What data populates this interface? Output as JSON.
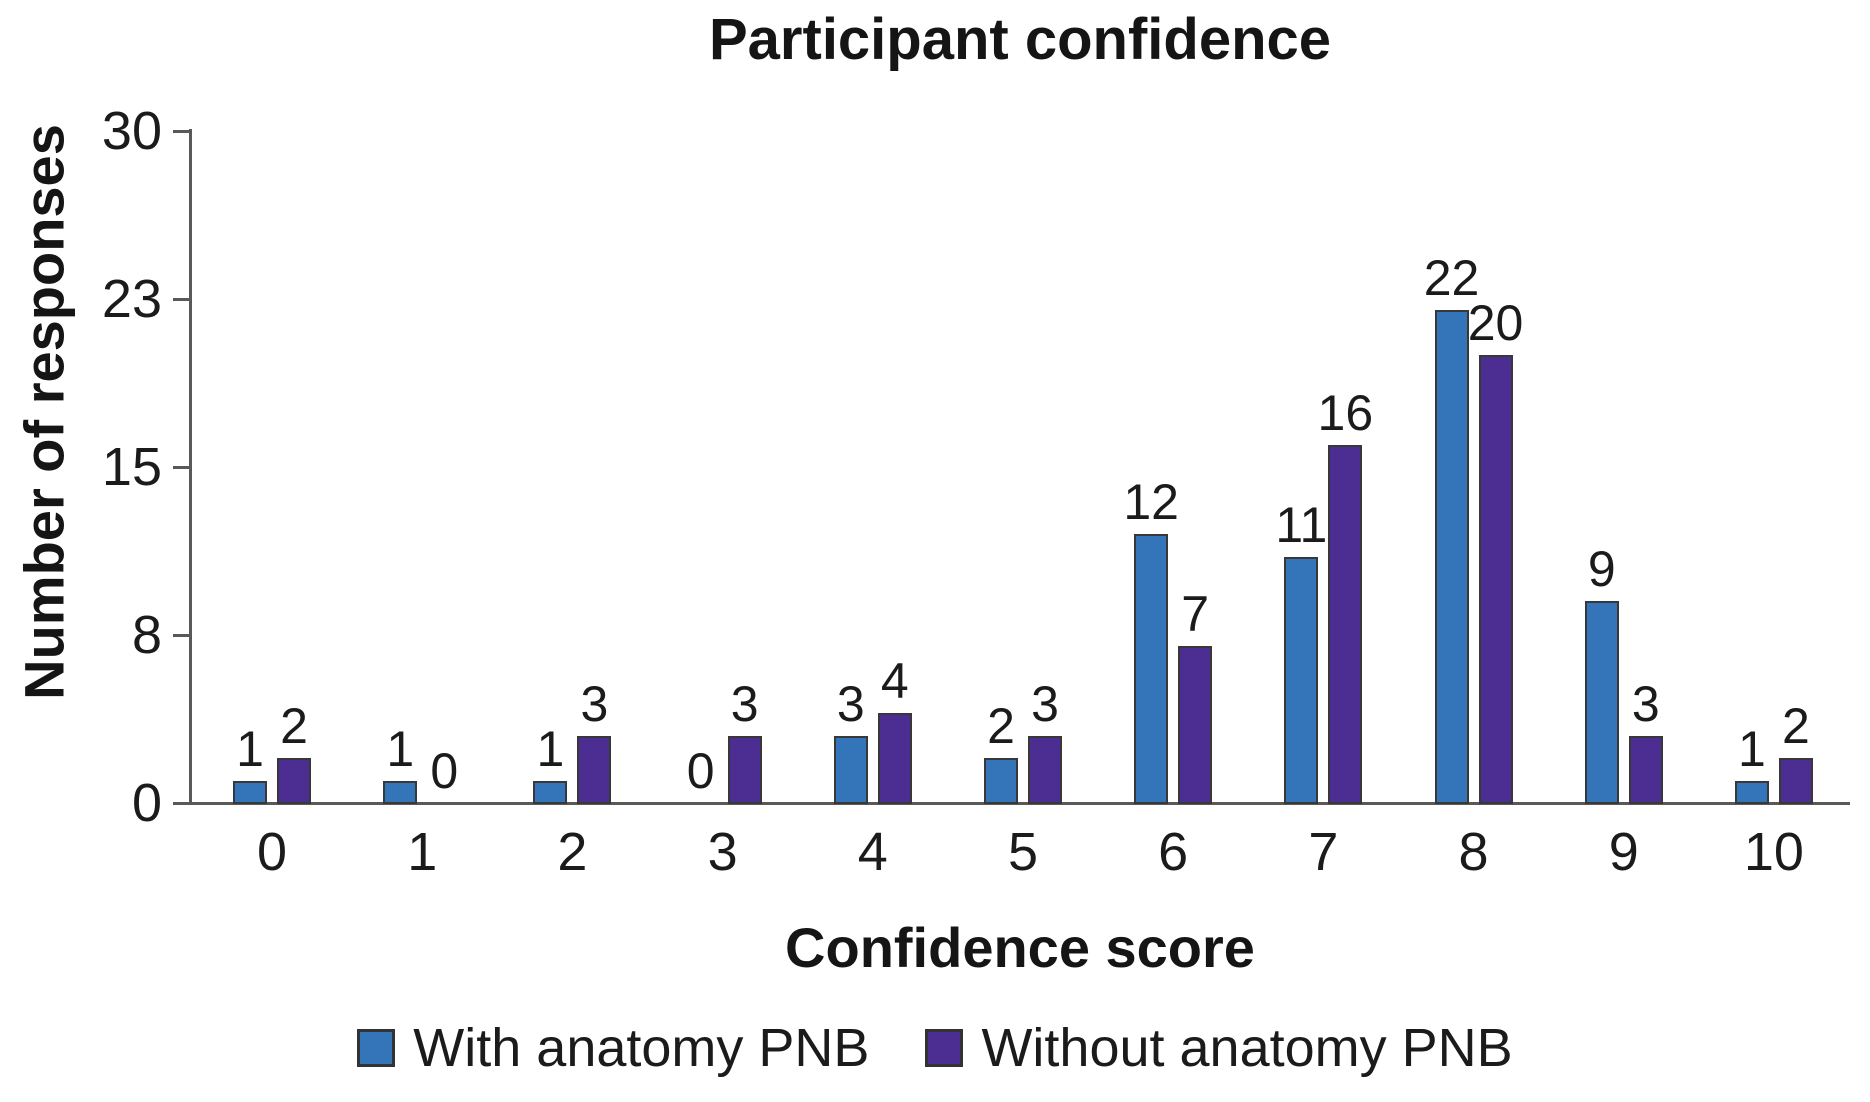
{
  "page": {
    "background": "#FFFFFF"
  },
  "styles": {
    "axis_color": "#595959",
    "bar_border_color": "#383838",
    "text_color": "#1B1B1B"
  },
  "chart_data": {
    "type": "bar",
    "title": "Participant confidence",
    "xlabel": "Confidence score",
    "ylabel": "Number of responses",
    "categories": [
      "0",
      "1",
      "2",
      "3",
      "4",
      "5",
      "6",
      "7",
      "8",
      "9",
      "10"
    ],
    "series": [
      {
        "name": "With anatomy PNB",
        "color": "#3474B9",
        "values": [
          1,
          1,
          1,
          0,
          3,
          2,
          12,
          11,
          22,
          9,
          1
        ]
      },
      {
        "name": "Without anatomy PNB",
        "color": "#4C2D91",
        "values": [
          2,
          0,
          3,
          3,
          4,
          3,
          7,
          16,
          20,
          3,
          2
        ]
      }
    ],
    "ylim": [
      0,
      30
    ],
    "ytick_labels": [
      "0",
      "8",
      "15",
      "23",
      "30"
    ],
    "bar_value_labels": true,
    "grid": false,
    "legend_position": "bottom"
  }
}
